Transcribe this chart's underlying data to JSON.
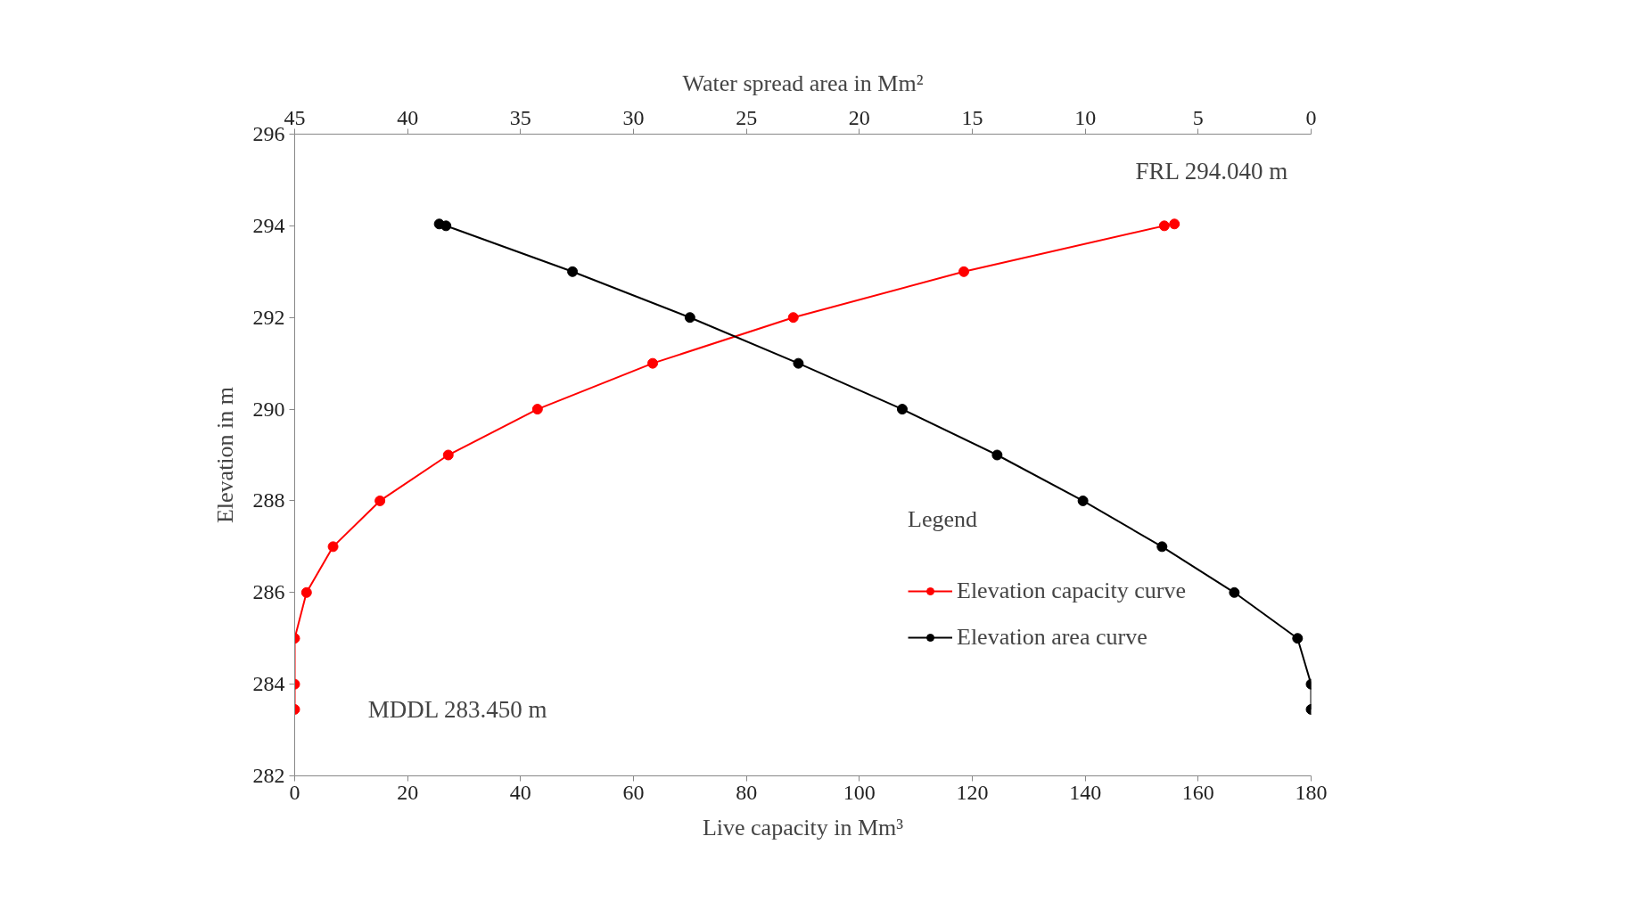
{
  "chart_data": {
    "type": "line",
    "xlabel": "Live capacity in Mm³",
    "x2label": "Water spread area in Mm²",
    "ylabel": "Elevation in m",
    "legend_title": "Legend",
    "xlim": [
      0,
      180
    ],
    "xticks": [
      0,
      20,
      40,
      60,
      80,
      100,
      120,
      140,
      160,
      180
    ],
    "x2lim": [
      45,
      0
    ],
    "x2ticks": [
      45,
      40,
      35,
      30,
      25,
      20,
      15,
      10,
      5,
      0
    ],
    "ylim": [
      282,
      296
    ],
    "yticks": [
      282,
      284,
      286,
      288,
      290,
      292,
      294,
      296
    ],
    "grid": false,
    "legend": "bottom right",
    "marker": "circle",
    "line_style": "solid",
    "annotations": [
      "FRL 294.040 m",
      "MDDL 283.450 m"
    ],
    "series": [
      {
        "name": "Elevation capacity curve",
        "color": "#ff0000",
        "x": [
          0,
          0,
          0,
          2.1,
          6.8,
          15.1,
          27.2,
          43.0,
          63.4,
          88.3,
          118.5,
          154.0,
          155.8
        ],
        "values": [
          283.45,
          284,
          285,
          286,
          287,
          288,
          289,
          290,
          291,
          292,
          293,
          294,
          294.04
        ]
      },
      {
        "name": "Elevation area curve",
        "color": "#000000",
        "axis": "x2",
        "x": [
          0,
          0,
          0.6,
          3.4,
          6.6,
          10.1,
          13.9,
          18.1,
          22.7,
          27.5,
          32.7,
          38.3,
          38.6
        ],
        "values": [
          283.45,
          284,
          285,
          286,
          287,
          288,
          289,
          290,
          291,
          292,
          293,
          294,
          294.04
        ]
      }
    ]
  }
}
